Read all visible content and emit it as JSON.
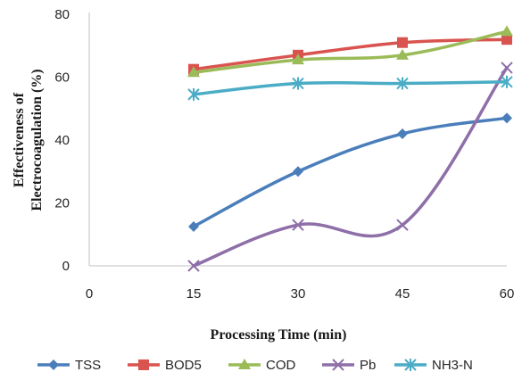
{
  "chart_data": {
    "type": "line",
    "title": "",
    "xlabel": "Processing Time (min)",
    "ylabel_lines": [
      "Effectiveness of",
      "Electrocoagulation (%)"
    ],
    "x_ticks": [
      "0",
      "15",
      "30",
      "45",
      "60"
    ],
    "y_ticks": [
      "0",
      "20",
      "40",
      "60",
      "80"
    ],
    "xlim": [
      0,
      60
    ],
    "ylim": [
      0,
      80
    ],
    "grid": false,
    "legend_position": "bottom",
    "x": [
      15,
      30,
      45,
      60
    ],
    "series": [
      {
        "name": "TSS",
        "values": [
          12.5,
          30,
          42,
          47
        ],
        "color": "#4a7ebb",
        "marker": "diamond"
      },
      {
        "name": "BOD5",
        "values": [
          62.5,
          67,
          71,
          72
        ],
        "color": "#d9534f",
        "marker": "square"
      },
      {
        "name": "COD",
        "values": [
          61.5,
          65.5,
          67,
          74.5
        ],
        "color": "#9bbb59",
        "marker": "triangle"
      },
      {
        "name": "Pb",
        "values": [
          0,
          13,
          13,
          63
        ],
        "color": "#8e6fa8",
        "marker": "x"
      },
      {
        "name": "NH3-N",
        "values": [
          54.5,
          58,
          58,
          58.5
        ],
        "color": "#4bacc6",
        "marker": "star"
      }
    ]
  }
}
